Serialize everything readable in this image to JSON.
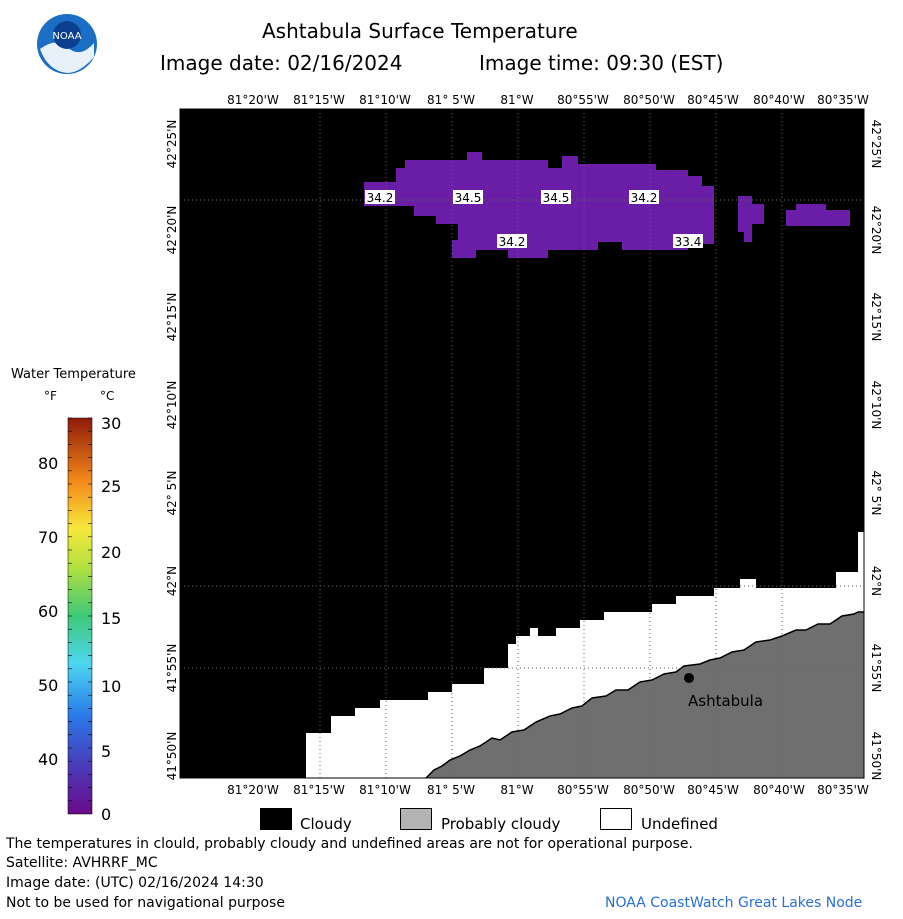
{
  "header": {
    "logo_text": "NOAA",
    "title": "Ashtabula Surface Temperature",
    "image_date": "Image date: 02/16/2024",
    "image_time": "Image time: 09:30 (EST)"
  },
  "map": {
    "lon_labels": [
      "81°20'W",
      "81°15'W",
      "81°10'W",
      "81° 5'W",
      "81°W",
      "80°55'W",
      "80°50'W",
      "80°45'W",
      "80°40'W",
      "80°35'W"
    ],
    "lat_labels": [
      "42°25'N",
      "42°20'N",
      "42°15'N",
      "42°10'N",
      "42° 5'N",
      "42°N",
      "41°55'N",
      "41°50'N"
    ],
    "temperature_labels": [
      "34.2",
      "34.5",
      "34.5",
      "34.2",
      "34.2",
      "33.4"
    ],
    "city": "Ashtabula",
    "colors": {
      "cloudy": "#000000",
      "probably_cloudy": "#6f6f6f",
      "undefined": "#ffffff",
      "water": "#6a1ea8"
    }
  },
  "colorbar": {
    "title": "Water Temperature",
    "unit_f": "°F",
    "unit_c": "°C",
    "f_ticks": [
      "80",
      "70",
      "60",
      "50",
      "40"
    ],
    "c_ticks": [
      "30",
      "25",
      "20",
      "15",
      "10",
      "5",
      "0"
    ]
  },
  "legend": {
    "cloudy": "Cloudy",
    "probably_cloudy": "Probably cloudy",
    "undefined": "Undefined"
  },
  "footer": {
    "disclaimer": "The temperatures in clould, probably cloudy and undefined areas are not for operational purpose.",
    "satellite": "Satellite: AVHRRF_MC",
    "utc_date": "Image date: (UTC) 02/16/2024  14:30",
    "nav_warning": "Not to be used for navigational purpose",
    "credit": "NOAA CoastWatch Great Lakes Node"
  }
}
